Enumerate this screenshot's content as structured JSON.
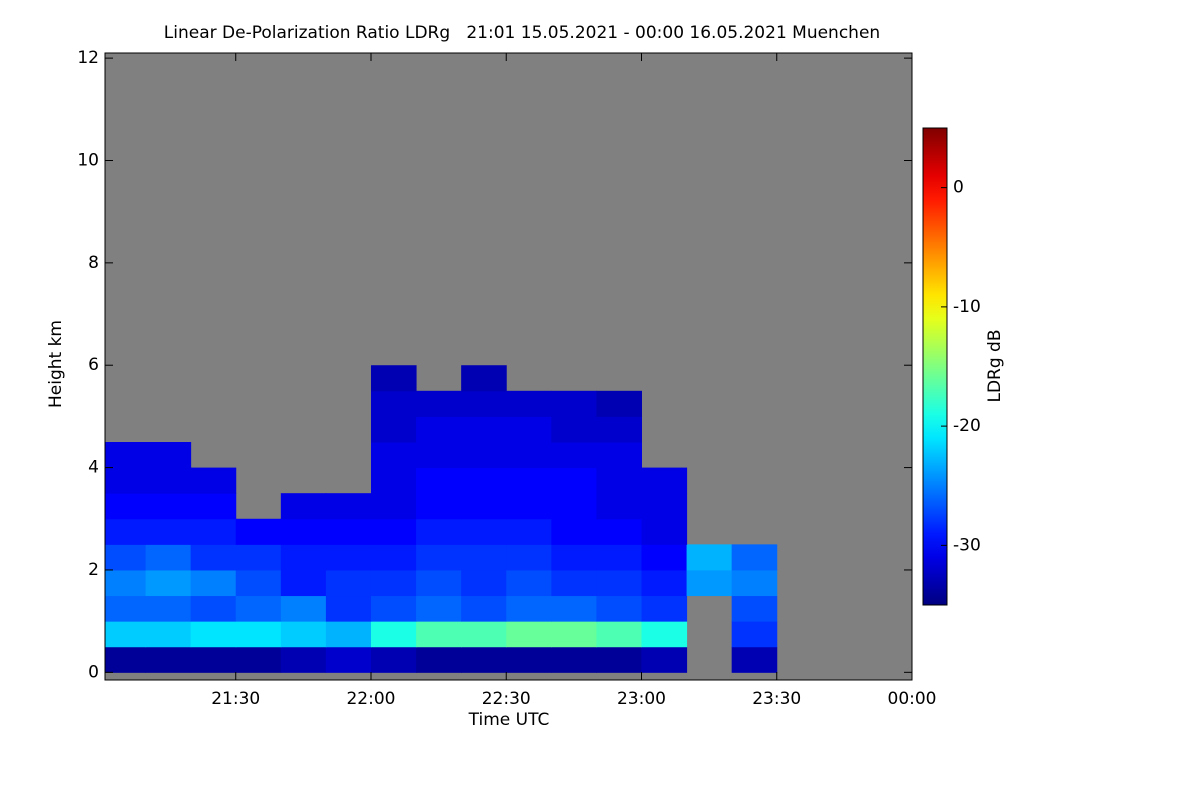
{
  "chart_data": {
    "type": "heatmap",
    "title": "Linear De-Polarization Ratio LDRg   21:01 15.05.2021 - 00:00 16.05.2021 Muenchen",
    "x_label": "Time UTC",
    "y_label": "Height km",
    "colorbar_label": "LDRg dB",
    "colormap": "jet",
    "no_data_color": "#808080",
    "xlim": [
      21.0167,
      24
    ],
    "xticks": [
      {
        "value": 21.5,
        "label": "21:30"
      },
      {
        "value": 22,
        "label": "22:00"
      },
      {
        "value": 22.5,
        "label": "22:30"
      },
      {
        "value": 23,
        "label": "23:00"
      },
      {
        "value": 23.5,
        "label": "23:30"
      },
      {
        "value": 24,
        "label": "00:00"
      }
    ],
    "ylim": [
      -0.15,
      12.1
    ],
    "yticks": [
      0,
      2,
      4,
      6,
      8,
      10,
      12
    ],
    "zlim": [
      -35,
      5
    ],
    "zticks": [
      0,
      -10,
      -20,
      -30
    ],
    "x_bins": [
      21.0167,
      21.1667,
      21.3333,
      21.5,
      21.6667,
      21.8333,
      22,
      22.1667,
      22.3333,
      22.5,
      22.6667,
      22.8333,
      23,
      23.1667,
      23.3333,
      23.5,
      23.6667,
      23.8333,
      24
    ],
    "y_bins": [
      0,
      0.5,
      1,
      1.5,
      2,
      2.5,
      3,
      3.5,
      4,
      4.5,
      5,
      5.5,
      6
    ],
    "z": [
      [
        -34,
        -34,
        -34,
        -34,
        -33,
        -32,
        -33,
        -34,
        -34,
        -34,
        -34,
        -34,
        -33,
        null,
        -33,
        null,
        null,
        null
      ],
      [
        -22,
        -22,
        -21,
        -21,
        -22,
        -23,
        -19,
        -17,
        -17,
        -16,
        -16,
        -17,
        -19,
        null,
        -28,
        null,
        null,
        null
      ],
      [
        -26,
        -26,
        -27,
        -26,
        -25,
        -28,
        -27,
        -26,
        -27,
        -26,
        -26,
        -27,
        -28,
        null,
        -27,
        null,
        null,
        null
      ],
      [
        -25,
        -24,
        -25,
        -27,
        -29,
        -28,
        -28,
        -27,
        -28,
        -27,
        -28,
        -28,
        -29,
        -24,
        -25,
        null,
        null,
        null
      ],
      [
        -27,
        -26,
        -28,
        -28,
        -29,
        -29,
        -29,
        -28,
        -28,
        -28,
        -29,
        -29,
        -30,
        -23,
        -26,
        null,
        null,
        null
      ],
      [
        -29,
        -29,
        -29,
        -30,
        -30,
        -30,
        -30,
        -29,
        -29,
        -29,
        -30,
        -30,
        -31,
        null,
        null,
        null,
        null,
        null
      ],
      [
        -30,
        -30,
        -30,
        null,
        -31,
        -31,
        -31,
        -30,
        -30,
        -30,
        -30,
        -31,
        -31,
        null,
        null,
        null,
        null,
        null
      ],
      [
        -31,
        -31,
        -31,
        null,
        null,
        null,
        -31,
        -30,
        -30,
        -30,
        -30,
        -31,
        -31,
        null,
        null,
        null,
        null,
        null
      ],
      [
        -31,
        -31,
        null,
        null,
        null,
        null,
        -31,
        -31,
        -31,
        -31,
        -31,
        -31,
        null,
        null,
        null,
        null,
        null,
        null
      ],
      [
        null,
        null,
        null,
        null,
        null,
        null,
        -32,
        -31,
        -31,
        -31,
        -32,
        -32,
        null,
        null,
        null,
        null,
        null,
        null
      ],
      [
        null,
        null,
        null,
        null,
        null,
        null,
        -32,
        -32,
        -32,
        -32,
        -32,
        -33,
        null,
        null,
        null,
        null,
        null,
        null
      ],
      [
        null,
        null,
        null,
        null,
        null,
        null,
        -33,
        null,
        -33,
        null,
        null,
        null,
        null,
        null,
        null,
        null,
        null,
        null
      ]
    ]
  }
}
